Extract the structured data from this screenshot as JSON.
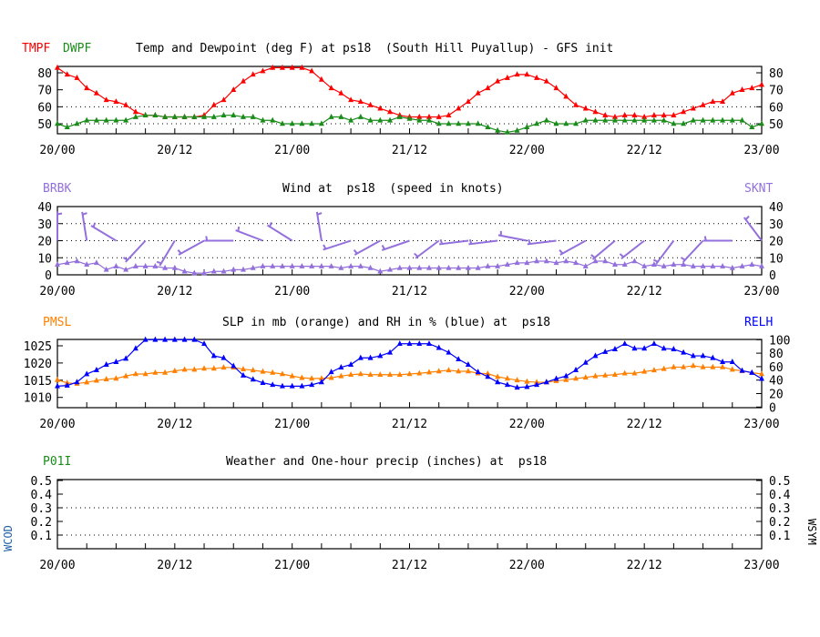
{
  "colors": {
    "temp": "#ff0000",
    "dewpoint": "#1a8c1a",
    "wind": "#9370db",
    "slp": "#ff8000",
    "rh": "#0000ff",
    "precip": "#1a8c1a",
    "wcod": "#1f5fa8",
    "axis": "#000000"
  },
  "x_ticks": [
    "20/00",
    "20/12",
    "21/00",
    "21/12",
    "22/00",
    "22/12",
    "23/00"
  ],
  "chart_data": [
    {
      "type": "line",
      "title": "Temp and Dewpoint (deg F) at ps18  (South Hill Puyallup) - GFS init",
      "left_label": "TMPF",
      "left_label2": "DWPF",
      "xlabel": "",
      "ylabel": "deg F",
      "x_hours": [
        0,
        72
      ],
      "ylim": [
        43,
        83
      ],
      "yticks": [
        50,
        60,
        70,
        80
      ],
      "grid_y": [
        50,
        60
      ],
      "series": [
        {
          "name": "TMPF",
          "values": [
            83,
            79,
            77,
            71,
            68,
            64,
            63,
            61,
            57,
            55,
            55,
            54,
            54,
            54,
            54,
            55,
            61,
            64,
            70,
            75,
            79,
            81,
            83,
            83,
            83,
            83,
            81,
            76,
            71,
            68,
            64,
            63,
            61,
            59,
            57,
            55,
            54,
            54,
            54,
            54,
            55,
            59,
            63,
            68,
            71,
            75,
            77,
            79,
            79,
            77,
            75,
            71,
            66,
            61,
            59,
            57,
            55,
            54,
            55,
            55,
            54,
            55,
            55,
            55,
            57,
            59,
            61,
            63,
            63,
            68,
            70,
            71,
            73
          ]
        },
        {
          "name": "DWPF",
          "values": [
            50,
            48,
            50,
            52,
            52,
            52,
            52,
            52,
            54,
            55,
            55,
            54,
            54,
            54,
            54,
            54,
            54,
            55,
            55,
            54,
            54,
            52,
            52,
            50,
            50,
            50,
            50,
            50,
            54,
            54,
            52,
            54,
            52,
            52,
            52,
            54,
            53,
            52,
            52,
            50,
            50,
            50,
            50,
            50,
            48,
            46,
            45,
            46,
            48,
            50,
            52,
            50,
            50,
            50,
            52,
            52,
            52,
            52,
            52,
            52,
            52,
            52,
            52,
            50,
            50,
            52,
            52,
            52,
            52,
            52,
            52,
            48,
            50
          ]
        }
      ]
    },
    {
      "type": "line",
      "title": "Wind at  ps18  (speed in knots)",
      "left_label": "BRBK",
      "right_label": "SKNT",
      "x_hours": [
        0,
        72
      ],
      "ylim": [
        0,
        40
      ],
      "yticks": [
        0,
        10,
        20,
        30,
        40
      ],
      "grid_y": [
        10,
        20,
        30
      ],
      "series": [
        {
          "name": "SKNT",
          "values": [
            6,
            7,
            8,
            6,
            7,
            3,
            5,
            3,
            5,
            5,
            5,
            4,
            4,
            2,
            1,
            1,
            2,
            2,
            3,
            3,
            4,
            5,
            5,
            5,
            5,
            5,
            5,
            5,
            5,
            4,
            5,
            5,
            4,
            2,
            3,
            4,
            4,
            4,
            4,
            4,
            4,
            4,
            4,
            4,
            5,
            5,
            6,
            7,
            7,
            8,
            8,
            7,
            8,
            7,
            5,
            8,
            8,
            6,
            6,
            8,
            5,
            6,
            5,
            6,
            6,
            5,
            5,
            5,
            5,
            4,
            5,
            6,
            5
          ]
        }
      ],
      "barbs": {
        "name": "BRBK",
        "plotted_at_value": 20,
        "hours": [
          0,
          3,
          6,
          9,
          12,
          15,
          18,
          21,
          24,
          27,
          30,
          33,
          36,
          39,
          42,
          45,
          48,
          51,
          54,
          57,
          60,
          63,
          66,
          69,
          72
        ],
        "direction_deg": [
          360,
          351,
          301,
          223,
          211,
          241,
          270,
          291,
          302,
          351,
          252,
          241,
          251,
          233,
          263,
          263,
          281,
          263,
          241,
          230,
          232,
          217,
          223,
          270,
          323
        ]
      }
    },
    {
      "type": "line",
      "title": "SLP in mb (orange) and RH in % (blue) at  ps18",
      "left_label": "PMSL",
      "right_label": "RELH",
      "x_hours": [
        0,
        72
      ],
      "ylim_left": [
        1006.9,
        1026.8
      ],
      "yticks_left": [
        1010,
        1015,
        1020,
        1025
      ],
      "ylim_right": [
        0,
        100
      ],
      "yticks_right": [
        0,
        20,
        40,
        60,
        80,
        100
      ],
      "series": [
        {
          "name": "PMSL",
          "axis": "left",
          "values": [
            1015.1,
            1014.2,
            1014.0,
            1014.4,
            1014.9,
            1015.3,
            1015.5,
            1016.2,
            1016.8,
            1016.8,
            1017.2,
            1017.2,
            1017.7,
            1018.1,
            1018.1,
            1018.4,
            1018.4,
            1018.7,
            1018.7,
            1018.2,
            1017.9,
            1017.5,
            1017.2,
            1016.8,
            1016.2,
            1015.7,
            1015.5,
            1015.5,
            1015.7,
            1016.2,
            1016.6,
            1016.8,
            1016.6,
            1016.6,
            1016.6,
            1016.6,
            1016.8,
            1017.0,
            1017.3,
            1017.6,
            1017.9,
            1017.6,
            1017.6,
            1017.0,
            1016.9,
            1016.0,
            1015.5,
            1015.0,
            1014.6,
            1014.4,
            1014.4,
            1014.8,
            1015.1,
            1015.5,
            1015.8,
            1016.2,
            1016.4,
            1016.6,
            1017.0,
            1017.0,
            1017.5,
            1017.9,
            1018.3,
            1018.8,
            1018.8,
            1019.2,
            1018.8,
            1018.8,
            1018.8,
            1018.1,
            1017.7,
            1017.2,
            1016.8
          ]
        },
        {
          "name": "RELH",
          "axis": "right",
          "values": [
            31,
            32,
            37,
            49,
            55,
            63,
            67,
            72,
            87,
            100,
            100,
            100,
            100,
            100,
            100,
            94,
            76,
            73,
            61,
            47,
            41,
            36,
            33,
            31,
            31,
            31,
            33,
            37,
            52,
            59,
            63,
            73,
            73,
            76,
            81,
            94,
            94,
            94,
            94,
            88,
            81,
            71,
            63,
            52,
            45,
            37,
            33,
            29,
            30,
            33,
            37,
            42,
            46,
            55,
            66,
            76,
            82,
            86,
            94,
            87,
            87,
            94,
            87,
            86,
            81,
            76,
            76,
            73,
            67,
            67,
            54,
            51,
            42
          ]
        }
      ]
    },
    {
      "type": "line",
      "title": "Weather and One-hour precip (inches) at  ps18",
      "left_label": "P01I",
      "side_label_left": "WCOD",
      "side_label_right": "WSYM",
      "x_hours": [
        0,
        72
      ],
      "ylim": [
        0,
        0.5
      ],
      "yticks": [
        0.1,
        0.2,
        0.3,
        0.4,
        0.5
      ],
      "ytick_labels": [
        "0.1",
        "0.2",
        "0.3",
        "0.4",
        "0.5"
      ],
      "grid_y": [
        0.1,
        0.3
      ],
      "series": []
    }
  ]
}
